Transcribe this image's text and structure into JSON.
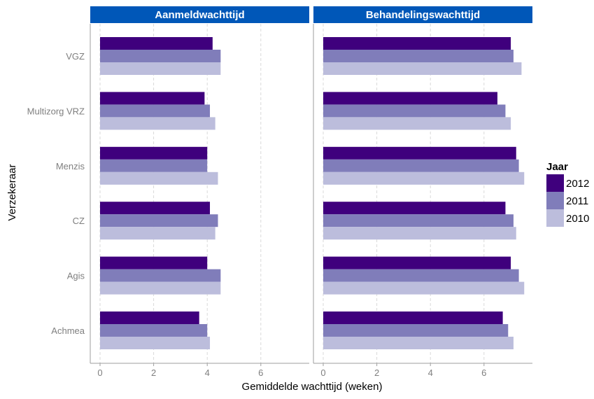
{
  "chart_data": {
    "type": "bar",
    "orientation": "horizontal",
    "xlabel": "Gemiddelde wachttijd (weken)",
    "ylabel": "Verzekeraar",
    "categories": [
      "VGZ",
      "Multizorg VRZ",
      "Menzis",
      "CZ",
      "Agis",
      "Achmea"
    ],
    "xlim": [
      0,
      7.8
    ],
    "xticks": [
      0,
      2,
      4,
      6
    ],
    "grid": true,
    "legend": {
      "title": "Jaar",
      "position": "right",
      "entries": [
        "2012",
        "2011",
        "2010"
      ]
    },
    "colors": {
      "2012": "#3f007d",
      "2011": "#807dba",
      "2010": "#bcbddc",
      "strip": "#0057b8"
    },
    "panels": [
      {
        "title": "Aanmeldwachttijd",
        "series": [
          {
            "name": "2012",
            "values": [
              4.2,
              3.9,
              4.0,
              4.1,
              4.0,
              3.7
            ]
          },
          {
            "name": "2011",
            "values": [
              4.5,
              4.1,
              4.0,
              4.4,
              4.5,
              4.0
            ]
          },
          {
            "name": "2010",
            "values": [
              4.5,
              4.3,
              4.4,
              4.3,
              4.5,
              4.1
            ]
          }
        ]
      },
      {
        "title": "Behandelingswachttijd",
        "series": [
          {
            "name": "2012",
            "values": [
              7.0,
              6.5,
              7.2,
              6.8,
              7.0,
              6.7
            ]
          },
          {
            "name": "2011",
            "values": [
              7.1,
              6.8,
              7.3,
              7.1,
              7.3,
              6.9
            ]
          },
          {
            "name": "2010",
            "values": [
              7.4,
              7.0,
              7.5,
              7.2,
              7.5,
              7.1
            ]
          }
        ]
      }
    ]
  }
}
